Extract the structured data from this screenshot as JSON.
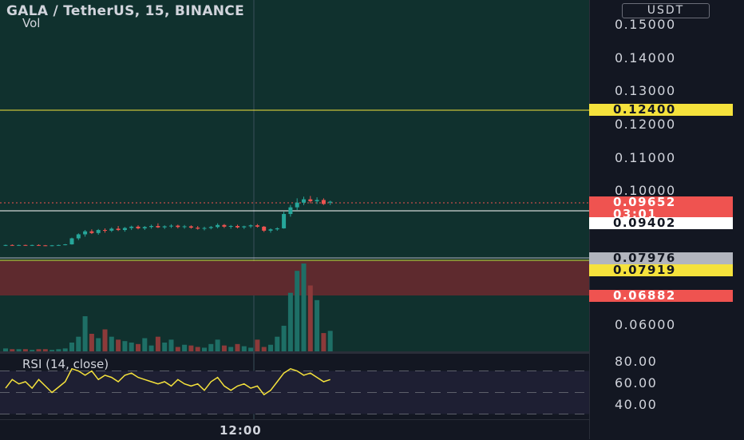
{
  "header": {
    "title": "GALA / TetherUS, 15, BINANCE",
    "volume_label": "Vol",
    "currency": "USDT"
  },
  "price_axis": {
    "ticks": [
      "0.15000",
      "0.14000",
      "0.13000",
      "0.12000",
      "0.11000",
      "0.10000",
      "0.06000"
    ],
    "badges": {
      "alert_high": "0.12400",
      "last_price": "0.09652",
      "countdown": "03:01",
      "support": "0.09402",
      "gray_level": "0.07976",
      "yellow_level": "0.07919",
      "red_level": "0.06882"
    }
  },
  "rsi": {
    "label": "RSI (14, close)",
    "ticks": [
      "80.00",
      "60.00",
      "40.00"
    ]
  },
  "time_axis": {
    "label": "12:00"
  },
  "colors": {
    "up": "#26a69a",
    "down": "#ef5350",
    "alert_line": "#f5e23c",
    "rsi_line": "#f5e23c"
  },
  "chart_data": {
    "type": "candlestick",
    "price_range": [
      0.062,
      0.153
    ],
    "levels": [
      0.124,
      0.09402,
      0.07976,
      0.07919
    ],
    "candles": [
      [
        0.0834,
        0.0836,
        0.0832,
        0.0835
      ],
      [
        0.0835,
        0.0837,
        0.0833,
        0.0834
      ],
      [
        0.0834,
        0.0836,
        0.0833,
        0.0835
      ],
      [
        0.0835,
        0.0836,
        0.0833,
        0.0834
      ],
      [
        0.0834,
        0.0836,
        0.0832,
        0.0835
      ],
      [
        0.0835,
        0.0837,
        0.0833,
        0.0834
      ],
      [
        0.0834,
        0.0835,
        0.0832,
        0.0833
      ],
      [
        0.0833,
        0.0835,
        0.0831,
        0.0834
      ],
      [
        0.0834,
        0.0836,
        0.0833,
        0.0835
      ],
      [
        0.0835,
        0.0838,
        0.0834,
        0.0837
      ],
      [
        0.0837,
        0.0857,
        0.0836,
        0.0855
      ],
      [
        0.0855,
        0.087,
        0.085,
        0.0867
      ],
      [
        0.0867,
        0.088,
        0.086,
        0.0876
      ],
      [
        0.0876,
        0.0882,
        0.0868,
        0.0871
      ],
      [
        0.0871,
        0.0883,
        0.0866,
        0.088
      ],
      [
        0.088,
        0.0885,
        0.0872,
        0.0878
      ],
      [
        0.0878,
        0.0888,
        0.0874,
        0.0884
      ],
      [
        0.0884,
        0.0892,
        0.0877,
        0.088
      ],
      [
        0.088,
        0.0889,
        0.0875,
        0.0886
      ],
      [
        0.0886,
        0.0893,
        0.088,
        0.089
      ],
      [
        0.089,
        0.0894,
        0.0882,
        0.0885
      ],
      [
        0.0885,
        0.0892,
        0.088,
        0.0889
      ],
      [
        0.0889,
        0.0896,
        0.0884,
        0.0892
      ],
      [
        0.0892,
        0.09,
        0.0886,
        0.0888
      ],
      [
        0.0888,
        0.0894,
        0.0883,
        0.0891
      ],
      [
        0.0891,
        0.0897,
        0.0886,
        0.0893
      ],
      [
        0.0893,
        0.0896,
        0.0885,
        0.0889
      ],
      [
        0.0889,
        0.0895,
        0.0884,
        0.0891
      ],
      [
        0.0891,
        0.0894,
        0.0884,
        0.0887
      ],
      [
        0.0887,
        0.0892,
        0.0881,
        0.0884
      ],
      [
        0.0884,
        0.089,
        0.0879,
        0.0886
      ],
      [
        0.0886,
        0.0892,
        0.0882,
        0.0889
      ],
      [
        0.0889,
        0.09,
        0.0885,
        0.0895
      ],
      [
        0.0895,
        0.0898,
        0.0886,
        0.089
      ],
      [
        0.089,
        0.0895,
        0.0884,
        0.0892
      ],
      [
        0.0892,
        0.0896,
        0.0885,
        0.0888
      ],
      [
        0.0888,
        0.0893,
        0.0883,
        0.0891
      ],
      [
        0.0891,
        0.0897,
        0.0886,
        0.0894
      ],
      [
        0.0894,
        0.0898,
        0.0887,
        0.089
      ],
      [
        0.089,
        0.0892,
        0.0874,
        0.0878
      ],
      [
        0.0878,
        0.0885,
        0.0872,
        0.0882
      ],
      [
        0.0882,
        0.0888,
        0.0878,
        0.0885
      ],
      [
        0.0885,
        0.0935,
        0.0884,
        0.0928
      ],
      [
        0.0928,
        0.0955,
        0.092,
        0.0948
      ],
      [
        0.0948,
        0.0975,
        0.094,
        0.0962
      ],
      [
        0.0962,
        0.098,
        0.0955,
        0.0972
      ],
      [
        0.0972,
        0.0982,
        0.096,
        0.0966
      ],
      [
        0.0966,
        0.0978,
        0.0958,
        0.097
      ],
      [
        0.097,
        0.0975,
        0.0955,
        0.0958
      ],
      [
        0.0962,
        0.0968,
        0.0955,
        0.0965
      ]
    ],
    "volume": [
      4,
      3,
      3,
      3,
      2,
      3,
      3,
      2,
      3,
      4,
      12,
      20,
      48,
      24,
      18,
      30,
      20,
      16,
      14,
      12,
      10,
      18,
      8,
      20,
      12,
      16,
      6,
      9,
      8,
      6,
      5,
      10,
      16,
      8,
      6,
      10,
      7,
      5,
      16,
      6,
      9,
      20,
      35,
      80,
      110,
      120,
      90,
      70,
      25,
      28
    ],
    "rsi_values": [
      54,
      62,
      58,
      60,
      54,
      62,
      56,
      50,
      55,
      60,
      72,
      70,
      66,
      70,
      62,
      66,
      64,
      60,
      66,
      68,
      64,
      62,
      60,
      58,
      60,
      56,
      62,
      58,
      56,
      58,
      52,
      60,
      64,
      56,
      52,
      56,
      58,
      54,
      56,
      48,
      52,
      60,
      68,
      72,
      70,
      66,
      68,
      64,
      60,
      62
    ]
  }
}
